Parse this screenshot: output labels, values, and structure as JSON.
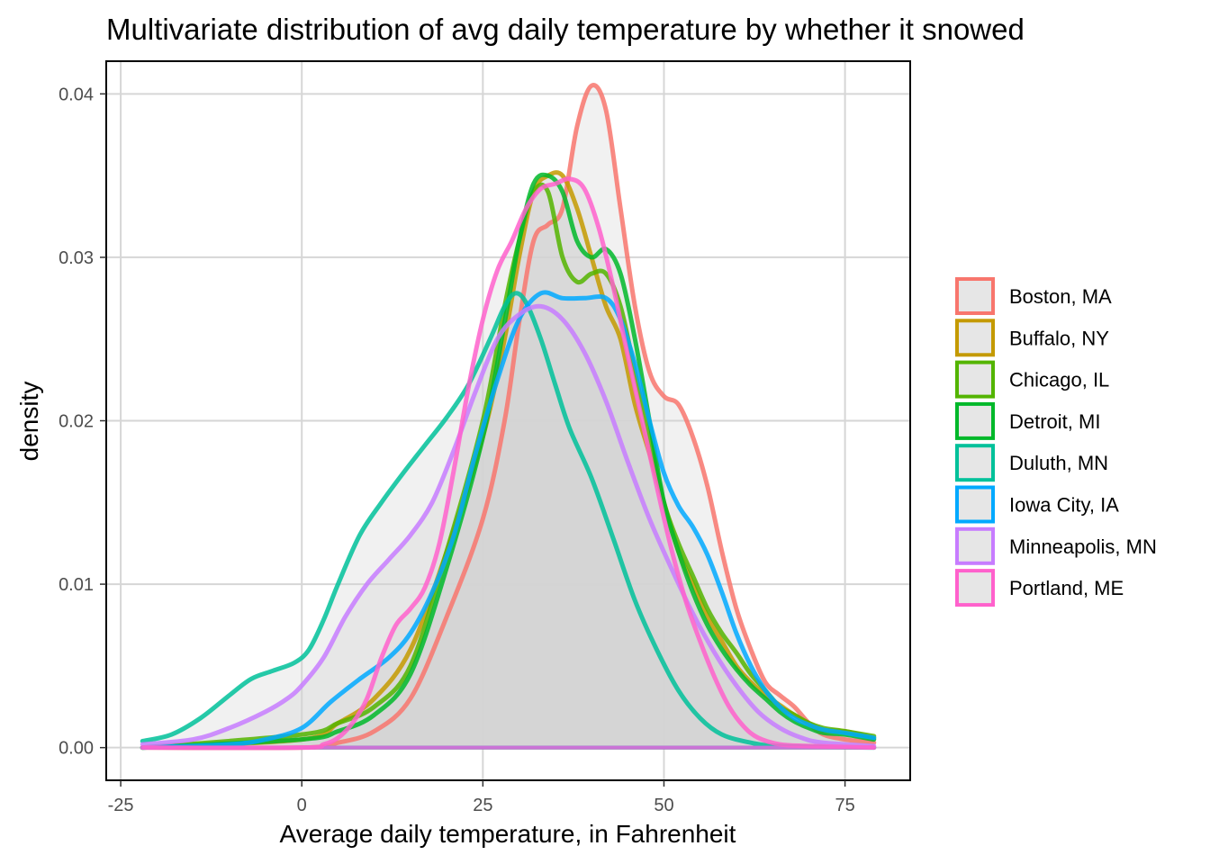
{
  "chart_data": {
    "type": "area",
    "title": "Multivariate distribution of avg daily temperature by whether it snowed",
    "xlabel": "Average daily temperature, in Fahrenheit",
    "ylabel": "density",
    "xlim": [
      -27,
      84
    ],
    "ylim": [
      -0.002,
      0.042
    ],
    "x_ticks": [
      -25,
      0,
      25,
      50,
      75
    ],
    "x_tick_labels": [
      "-25",
      "0",
      "25",
      "50",
      "75"
    ],
    "y_ticks": [
      0,
      0.01,
      0.02,
      0.03,
      0.04
    ],
    "y_tick_labels": [
      "0.00",
      "0.01",
      "0.02",
      "0.03",
      "0.04"
    ],
    "grid": true,
    "legend_position": "right",
    "fill_color": "#d3d3d3",
    "series": [
      {
        "name": "Boston, MA",
        "color": "#F8766D",
        "points": [
          [
            -22,
            0
          ],
          [
            0,
            0
          ],
          [
            5,
            0.0003
          ],
          [
            10,
            0.001
          ],
          [
            15,
            0.003
          ],
          [
            20,
            0.008
          ],
          [
            25,
            0.014
          ],
          [
            28,
            0.02
          ],
          [
            30,
            0.026
          ],
          [
            32,
            0.031
          ],
          [
            34,
            0.032
          ],
          [
            36,
            0.033
          ],
          [
            38,
            0.038
          ],
          [
            40,
            0.0405
          ],
          [
            42,
            0.039
          ],
          [
            44,
            0.033
          ],
          [
            46,
            0.027
          ],
          [
            48,
            0.023
          ],
          [
            50,
            0.0215
          ],
          [
            52,
            0.021
          ],
          [
            54,
            0.019
          ],
          [
            56,
            0.016
          ],
          [
            58,
            0.012
          ],
          [
            60,
            0.0085
          ],
          [
            62,
            0.006
          ],
          [
            64,
            0.004
          ],
          [
            66,
            0.0032
          ],
          [
            68,
            0.0025
          ],
          [
            70,
            0.0015
          ],
          [
            72,
            0.0008
          ],
          [
            75,
            0.0005
          ],
          [
            79,
            0.0003
          ]
        ]
      },
      {
        "name": "Buffalo, NY",
        "color": "#C49A00",
        "points": [
          [
            -22,
            0
          ],
          [
            0,
            0.0005
          ],
          [
            5,
            0.0015
          ],
          [
            10,
            0.003
          ],
          [
            15,
            0.006
          ],
          [
            20,
            0.012
          ],
          [
            25,
            0.019
          ],
          [
            28,
            0.025
          ],
          [
            30,
            0.03
          ],
          [
            32,
            0.034
          ],
          [
            34,
            0.035
          ],
          [
            36,
            0.035
          ],
          [
            38,
            0.033
          ],
          [
            40,
            0.03
          ],
          [
            42,
            0.027
          ],
          [
            44,
            0.025
          ],
          [
            46,
            0.021
          ],
          [
            48,
            0.018
          ],
          [
            50,
            0.015
          ],
          [
            52,
            0.012
          ],
          [
            54,
            0.01
          ],
          [
            56,
            0.008
          ],
          [
            58,
            0.0065
          ],
          [
            60,
            0.005
          ],
          [
            62,
            0.004
          ],
          [
            64,
            0.0032
          ],
          [
            66,
            0.0026
          ],
          [
            68,
            0.002
          ],
          [
            70,
            0.0015
          ],
          [
            72,
            0.0011
          ],
          [
            75,
            0.001
          ],
          [
            79,
            0.0006
          ]
        ]
      },
      {
        "name": "Chicago, IL",
        "color": "#53B400",
        "points": [
          [
            -22,
            0
          ],
          [
            0,
            0.0008
          ],
          [
            5,
            0.0015
          ],
          [
            10,
            0.0025
          ],
          [
            15,
            0.005
          ],
          [
            20,
            0.012
          ],
          [
            25,
            0.02
          ],
          [
            28,
            0.027
          ],
          [
            30,
            0.031
          ],
          [
            32,
            0.034
          ],
          [
            34,
            0.034
          ],
          [
            36,
            0.03
          ],
          [
            38,
            0.0285
          ],
          [
            40,
            0.029
          ],
          [
            42,
            0.029
          ],
          [
            44,
            0.027
          ],
          [
            46,
            0.023
          ],
          [
            48,
            0.019
          ],
          [
            50,
            0.015
          ],
          [
            52,
            0.0125
          ],
          [
            54,
            0.0105
          ],
          [
            56,
            0.0085
          ],
          [
            58,
            0.007
          ],
          [
            60,
            0.0058
          ],
          [
            62,
            0.0045
          ],
          [
            64,
            0.0035
          ],
          [
            66,
            0.0025
          ],
          [
            68,
            0.002
          ],
          [
            70,
            0.0015
          ],
          [
            72,
            0.0012
          ],
          [
            75,
            0.001
          ],
          [
            79,
            0.0007
          ]
        ]
      },
      {
        "name": "Detroit, MI",
        "color": "#00B82A",
        "points": [
          [
            -22,
            0
          ],
          [
            0,
            0.0005
          ],
          [
            5,
            0.001
          ],
          [
            10,
            0.002
          ],
          [
            15,
            0.0045
          ],
          [
            20,
            0.011
          ],
          [
            25,
            0.019
          ],
          [
            28,
            0.026
          ],
          [
            30,
            0.031
          ],
          [
            32,
            0.0345
          ],
          [
            34,
            0.035
          ],
          [
            36,
            0.034
          ],
          [
            38,
            0.031
          ],
          [
            40,
            0.03
          ],
          [
            42,
            0.0305
          ],
          [
            44,
            0.029
          ],
          [
            46,
            0.025
          ],
          [
            48,
            0.02
          ],
          [
            50,
            0.015
          ],
          [
            52,
            0.012
          ],
          [
            54,
            0.0095
          ],
          [
            56,
            0.0075
          ],
          [
            58,
            0.006
          ],
          [
            60,
            0.0048
          ],
          [
            62,
            0.0038
          ],
          [
            64,
            0.003
          ],
          [
            66,
            0.0022
          ],
          [
            68,
            0.0016
          ],
          [
            70,
            0.0012
          ],
          [
            72,
            0.0009
          ],
          [
            75,
            0.0008
          ],
          [
            79,
            0.0005
          ]
        ]
      },
      {
        "name": "Duluth, MN",
        "color": "#00C19A",
        "points": [
          [
            -22,
            0.0004
          ],
          [
            -18,
            0.0008
          ],
          [
            -14,
            0.0018
          ],
          [
            -10,
            0.0032
          ],
          [
            -7,
            0.0042
          ],
          [
            -4,
            0.0047
          ],
          [
            -1,
            0.0052
          ],
          [
            1,
            0.006
          ],
          [
            3,
            0.0078
          ],
          [
            5,
            0.01
          ],
          [
            8,
            0.013
          ],
          [
            11,
            0.015
          ],
          [
            14,
            0.0168
          ],
          [
            17,
            0.0185
          ],
          [
            20,
            0.0202
          ],
          [
            23,
            0.0222
          ],
          [
            26,
            0.025
          ],
          [
            28,
            0.027
          ],
          [
            29.5,
            0.0278
          ],
          [
            31,
            0.0272
          ],
          [
            33,
            0.025
          ],
          [
            35,
            0.0222
          ],
          [
            37,
            0.0195
          ],
          [
            40,
            0.0165
          ],
          [
            43,
            0.0128
          ],
          [
            46,
            0.009
          ],
          [
            49,
            0.006
          ],
          [
            52,
            0.0035
          ],
          [
            55,
            0.0018
          ],
          [
            58,
            0.0008
          ],
          [
            62,
            0.0003
          ],
          [
            66,
            0.0001
          ],
          [
            79,
            0
          ]
        ]
      },
      {
        "name": "Iowa City, IA",
        "color": "#00A9FF",
        "points": [
          [
            -22,
            0
          ],
          [
            -10,
            0.0002
          ],
          [
            -5,
            0.0005
          ],
          [
            0,
            0.0012
          ],
          [
            4,
            0.0028
          ],
          [
            8,
            0.0042
          ],
          [
            12,
            0.0055
          ],
          [
            15,
            0.007
          ],
          [
            18,
            0.0095
          ],
          [
            21,
            0.013
          ],
          [
            24,
            0.018
          ],
          [
            27,
            0.0225
          ],
          [
            30,
            0.0262
          ],
          [
            33,
            0.0278
          ],
          [
            36,
            0.0275
          ],
          [
            39,
            0.0275
          ],
          [
            42,
            0.0275
          ],
          [
            44,
            0.0262
          ],
          [
            46,
            0.0235
          ],
          [
            48,
            0.02
          ],
          [
            50,
            0.0168
          ],
          [
            52,
            0.0148
          ],
          [
            54,
            0.0135
          ],
          [
            56,
            0.0118
          ],
          [
            58,
            0.0095
          ],
          [
            60,
            0.007
          ],
          [
            62,
            0.005
          ],
          [
            64,
            0.0035
          ],
          [
            66,
            0.0025
          ],
          [
            68,
            0.0018
          ],
          [
            70,
            0.0014
          ],
          [
            72,
            0.0011
          ],
          [
            75,
            0.0009
          ],
          [
            79,
            0.0006
          ]
        ]
      },
      {
        "name": "Minneapolis, MN",
        "color": "#C77CFF",
        "points": [
          [
            -22,
            0.0002
          ],
          [
            -15,
            0.0005
          ],
          [
            -10,
            0.0012
          ],
          [
            -5,
            0.0022
          ],
          [
            -2,
            0.003
          ],
          [
            0,
            0.0038
          ],
          [
            3,
            0.0055
          ],
          [
            6,
            0.008
          ],
          [
            9,
            0.01
          ],
          [
            12,
            0.0115
          ],
          [
            15,
            0.013
          ],
          [
            18,
            0.015
          ],
          [
            21,
            0.0182
          ],
          [
            24,
            0.0218
          ],
          [
            27,
            0.025
          ],
          [
            30,
            0.0265
          ],
          [
            33,
            0.027
          ],
          [
            36,
            0.0262
          ],
          [
            39,
            0.0242
          ],
          [
            42,
            0.0212
          ],
          [
            45,
            0.0175
          ],
          [
            48,
            0.014
          ],
          [
            51,
            0.011
          ],
          [
            54,
            0.0082
          ],
          [
            57,
            0.0058
          ],
          [
            60,
            0.0038
          ],
          [
            63,
            0.0022
          ],
          [
            66,
            0.0012
          ],
          [
            69,
            0.0006
          ],
          [
            72,
            0.0003
          ],
          [
            79,
            0.0001
          ]
        ]
      },
      {
        "name": "Portland, ME",
        "color": "#FF61CC",
        "points": [
          [
            -22,
            0
          ],
          [
            0,
            0
          ],
          [
            3,
            0.0002
          ],
          [
            5,
            0.0006
          ],
          [
            7,
            0.0015
          ],
          [
            9,
            0.003
          ],
          [
            11,
            0.0055
          ],
          [
            13,
            0.0075
          ],
          [
            15,
            0.0085
          ],
          [
            17,
            0.0098
          ],
          [
            19,
            0.0125
          ],
          [
            21,
            0.017
          ],
          [
            23,
            0.022
          ],
          [
            25,
            0.0262
          ],
          [
            27,
            0.0292
          ],
          [
            29,
            0.031
          ],
          [
            31,
            0.033
          ],
          [
            33,
            0.0342
          ],
          [
            35,
            0.0345
          ],
          [
            37,
            0.0348
          ],
          [
            39,
            0.0342
          ],
          [
            41,
            0.0318
          ],
          [
            43,
            0.0282
          ],
          [
            45,
            0.024
          ],
          [
            47,
            0.02
          ],
          [
            49,
            0.016
          ],
          [
            51,
            0.0122
          ],
          [
            53,
            0.009
          ],
          [
            55,
            0.0065
          ],
          [
            57,
            0.0043
          ],
          [
            59,
            0.0025
          ],
          [
            61,
            0.0013
          ],
          [
            63,
            0.0006
          ],
          [
            66,
            0.0002
          ],
          [
            70,
            0.0001
          ],
          [
            79,
            0
          ]
        ]
      }
    ]
  }
}
